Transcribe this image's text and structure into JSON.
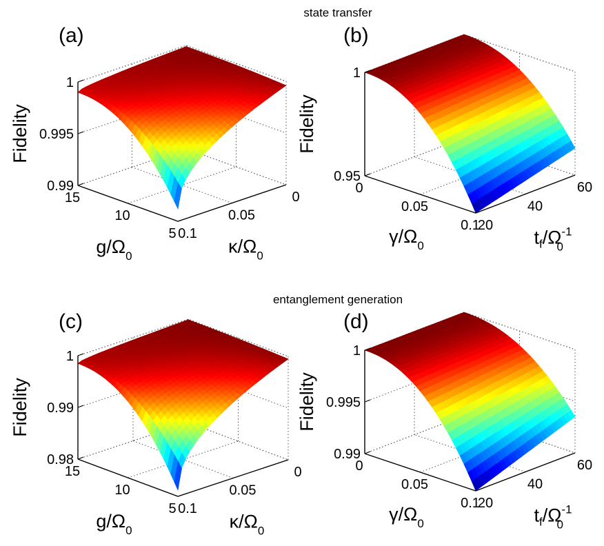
{
  "titles": {
    "top": "state transfer",
    "bottom": "entanglement generation"
  },
  "colors": {
    "colormap": "jet",
    "jet_stops": [
      "#00008f",
      "#0000ff",
      "#00ffff",
      "#ffff00",
      "#ff0000",
      "#800000"
    ]
  },
  "chart_data": [
    {
      "type": "surface",
      "panel": "(a)",
      "zlabel": "Fidelity",
      "xlabel_main": "κ/Ω",
      "xlabel_sub": "0",
      "ylabel_main": "g/Ω",
      "ylabel_sub": "0",
      "xlim": [
        0,
        0.1
      ],
      "ylim": [
        5,
        15
      ],
      "zlim": [
        0.99,
        1
      ],
      "x_ticks": [
        "0",
        "0.05",
        "0.1"
      ],
      "y_ticks": [
        "5",
        "10",
        "15"
      ],
      "z_ticks": [
        "0.99",
        "0.995",
        "1"
      ],
      "corners": {
        "x0_y15": 0.9999,
        "x0_y5": 0.9996,
        "x01_y15": 0.999,
        "x01_y5": 0.9912
      },
      "grid": true
    },
    {
      "type": "surface",
      "panel": "(b)",
      "zlabel": "Fidelity",
      "xlabel_main": "γ/Ω",
      "xlabel_sub": "0",
      "ylabel_main": "t",
      "ylabel_sub": "f",
      "ylabel_mid": "/Ω",
      "ylabel_sub2": "0",
      "ylabel_sup": "-1",
      "xlim": [
        0,
        0.1
      ],
      "ylim": [
        20,
        60
      ],
      "zlim": [
        0.95,
        1
      ],
      "x_ticks": [
        "0",
        "0.05",
        "0.1"
      ],
      "y_ticks": [
        "20",
        "40",
        "60"
      ],
      "z_ticks": [
        "0.95",
        "1"
      ],
      "corners": {
        "x0_y20": 1.0,
        "x0_y60": 1.0,
        "x01_y20": 0.95,
        "x01_y60": 0.963
      },
      "grid": true
    },
    {
      "type": "surface",
      "panel": "(c)",
      "zlabel": "Fidelity",
      "xlabel_main": "κ/Ω",
      "xlabel_sub": "0",
      "ylabel_main": "g/Ω",
      "ylabel_sub": "0",
      "xlim": [
        0,
        0.1
      ],
      "ylim": [
        5,
        15
      ],
      "zlim": [
        0.98,
        1
      ],
      "x_ticks": [
        "0",
        "0.05",
        "0.1"
      ],
      "y_ticks": [
        "5",
        "10",
        "15"
      ],
      "z_ticks": [
        "0.98",
        "0.99",
        "1"
      ],
      "corners": {
        "x0_y15": 0.9999,
        "x0_y5": 0.9995,
        "x01_y15": 0.9985,
        "x01_y5": 0.9812
      },
      "grid": true
    },
    {
      "type": "surface",
      "panel": "(d)",
      "zlabel": "Fidelity",
      "xlabel_main": "γ/Ω",
      "xlabel_sub": "0",
      "ylabel_main": "t",
      "ylabel_sub": "f",
      "ylabel_mid": "/Ω",
      "ylabel_sub2": "0",
      "ylabel_sup": "-1",
      "xlim": [
        0,
        0.1
      ],
      "ylim": [
        20,
        60
      ],
      "zlim": [
        0.99,
        1
      ],
      "x_ticks": [
        "0",
        "0.05",
        "0.1"
      ],
      "y_ticks": [
        "20",
        "40",
        "60"
      ],
      "z_ticks": [
        "0.99",
        "0.995",
        "1"
      ],
      "corners": {
        "x0_y20": 1.0,
        "x0_y60": 1.0,
        "x01_y20": 0.99,
        "x01_y60": 0.9935
      },
      "grid": true
    }
  ]
}
